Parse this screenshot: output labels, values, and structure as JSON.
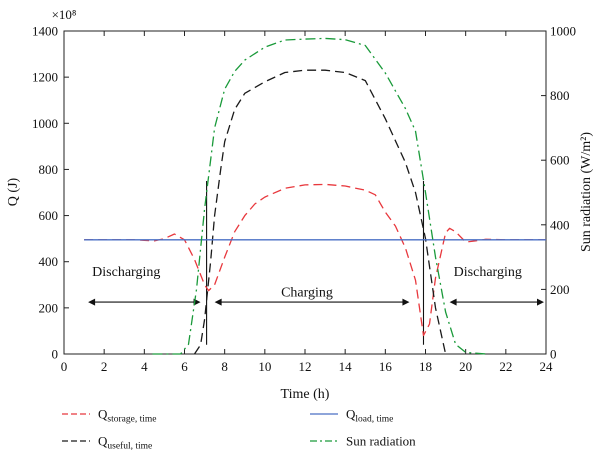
{
  "chart_data": {
    "type": "line",
    "xlabel": "Time (h)",
    "ylabel": "Q (J)",
    "y2label": "Sun radiation (W/m²)",
    "yscale_label": "×10⁸",
    "xlim": [
      0,
      24
    ],
    "ylim": [
      0,
      1400
    ],
    "y2lim": [
      0,
      1000
    ],
    "xticks": [
      0,
      2,
      4,
      6,
      8,
      10,
      12,
      14,
      16,
      18,
      20,
      22,
      24
    ],
    "yticks": [
      0,
      200,
      400,
      600,
      800,
      1000,
      1200,
      1400
    ],
    "y2ticks": [
      0,
      200,
      400,
      600,
      800,
      1000
    ],
    "grid": false,
    "legend_position": "bottom",
    "colors": {
      "storage": "#e8383d",
      "useful": "#1a1a1a",
      "load": "#4a6fc4",
      "sun": "#1a9a3a"
    },
    "series": [
      {
        "name": "Q storage, time",
        "name_main": "Q",
        "name_sub": "storage, time",
        "axis": "left",
        "style": "dashed",
        "x": [
          1,
          2,
          3,
          3.5,
          4,
          4.5,
          5,
          5.5,
          6,
          6.5,
          7,
          7.2,
          7.5,
          8,
          8.5,
          9,
          9.5,
          10,
          11,
          12,
          13,
          14,
          15,
          15.5,
          16,
          16.5,
          17,
          17.5,
          17.9,
          18.2,
          18.5,
          19,
          19.2,
          19.5,
          20,
          20.5,
          21,
          22,
          23,
          24
        ],
        "y": [
          495,
          495,
          495,
          495,
          493,
          490,
          500,
          520,
          495,
          410,
          300,
          275,
          300,
          420,
          530,
          600,
          650,
          680,
          718,
          733,
          735,
          728,
          710,
          690,
          615,
          555,
          460,
          320,
          80,
          130,
          330,
          525,
          545,
          530,
          485,
          490,
          497,
          495,
          495,
          495
        ]
      },
      {
        "name": "Q useful, time",
        "name_main": "Q",
        "name_sub": "useful, time",
        "axis": "left",
        "style": "dashed",
        "x": [
          6.5,
          6.8,
          7,
          7.3,
          7.5,
          7.8,
          8,
          8.5,
          9,
          10,
          11,
          12,
          13,
          14,
          15,
          16,
          17,
          17.5,
          18,
          18.5,
          19
        ],
        "y": [
          0,
          40,
          150,
          400,
          600,
          800,
          920,
          1060,
          1130,
          1180,
          1220,
          1230,
          1230,
          1220,
          1185,
          1020,
          830,
          700,
          500,
          200,
          0
        ]
      },
      {
        "name": "Q load, time",
        "name_main": "Q",
        "name_sub": "load, time",
        "axis": "left",
        "style": "solid",
        "x": [
          1,
          24
        ],
        "y": [
          495,
          495
        ]
      },
      {
        "name": "Sun radiation",
        "axis": "right",
        "style": "dashdot",
        "x": [
          4.4,
          5,
          5.8,
          6.2,
          6.6,
          7,
          7.5,
          8,
          8.5,
          9,
          10,
          11,
          12,
          13,
          14,
          15,
          16,
          17,
          17.5,
          18,
          18.5,
          19,
          19.5,
          20,
          21
        ],
        "y": [
          0,
          0,
          0,
          30,
          200,
          450,
          700,
          820,
          875,
          910,
          950,
          972,
          975,
          977,
          973,
          955,
          870,
          760,
          690,
          500,
          300,
          130,
          30,
          5,
          0
        ]
      }
    ],
    "annotations": [
      {
        "text": "Discharging",
        "x": 3.1,
        "y": 360
      },
      {
        "text": "Charging",
        "x": 12.1,
        "y": 270
      },
      {
        "text": "Discharging",
        "x": 21.1,
        "y": 360
      }
    ],
    "arrows": [
      {
        "from": 1.2,
        "to": 6.8,
        "y": 225
      },
      {
        "from": 7.5,
        "to": 17.2,
        "y": 225
      },
      {
        "from": 19.2,
        "to": 23.9,
        "y": 225
      }
    ],
    "vlines": [
      {
        "x": 7.1,
        "y0": 40,
        "y1": 750
      },
      {
        "x": 17.9,
        "y0": 40,
        "y1": 750
      }
    ]
  }
}
